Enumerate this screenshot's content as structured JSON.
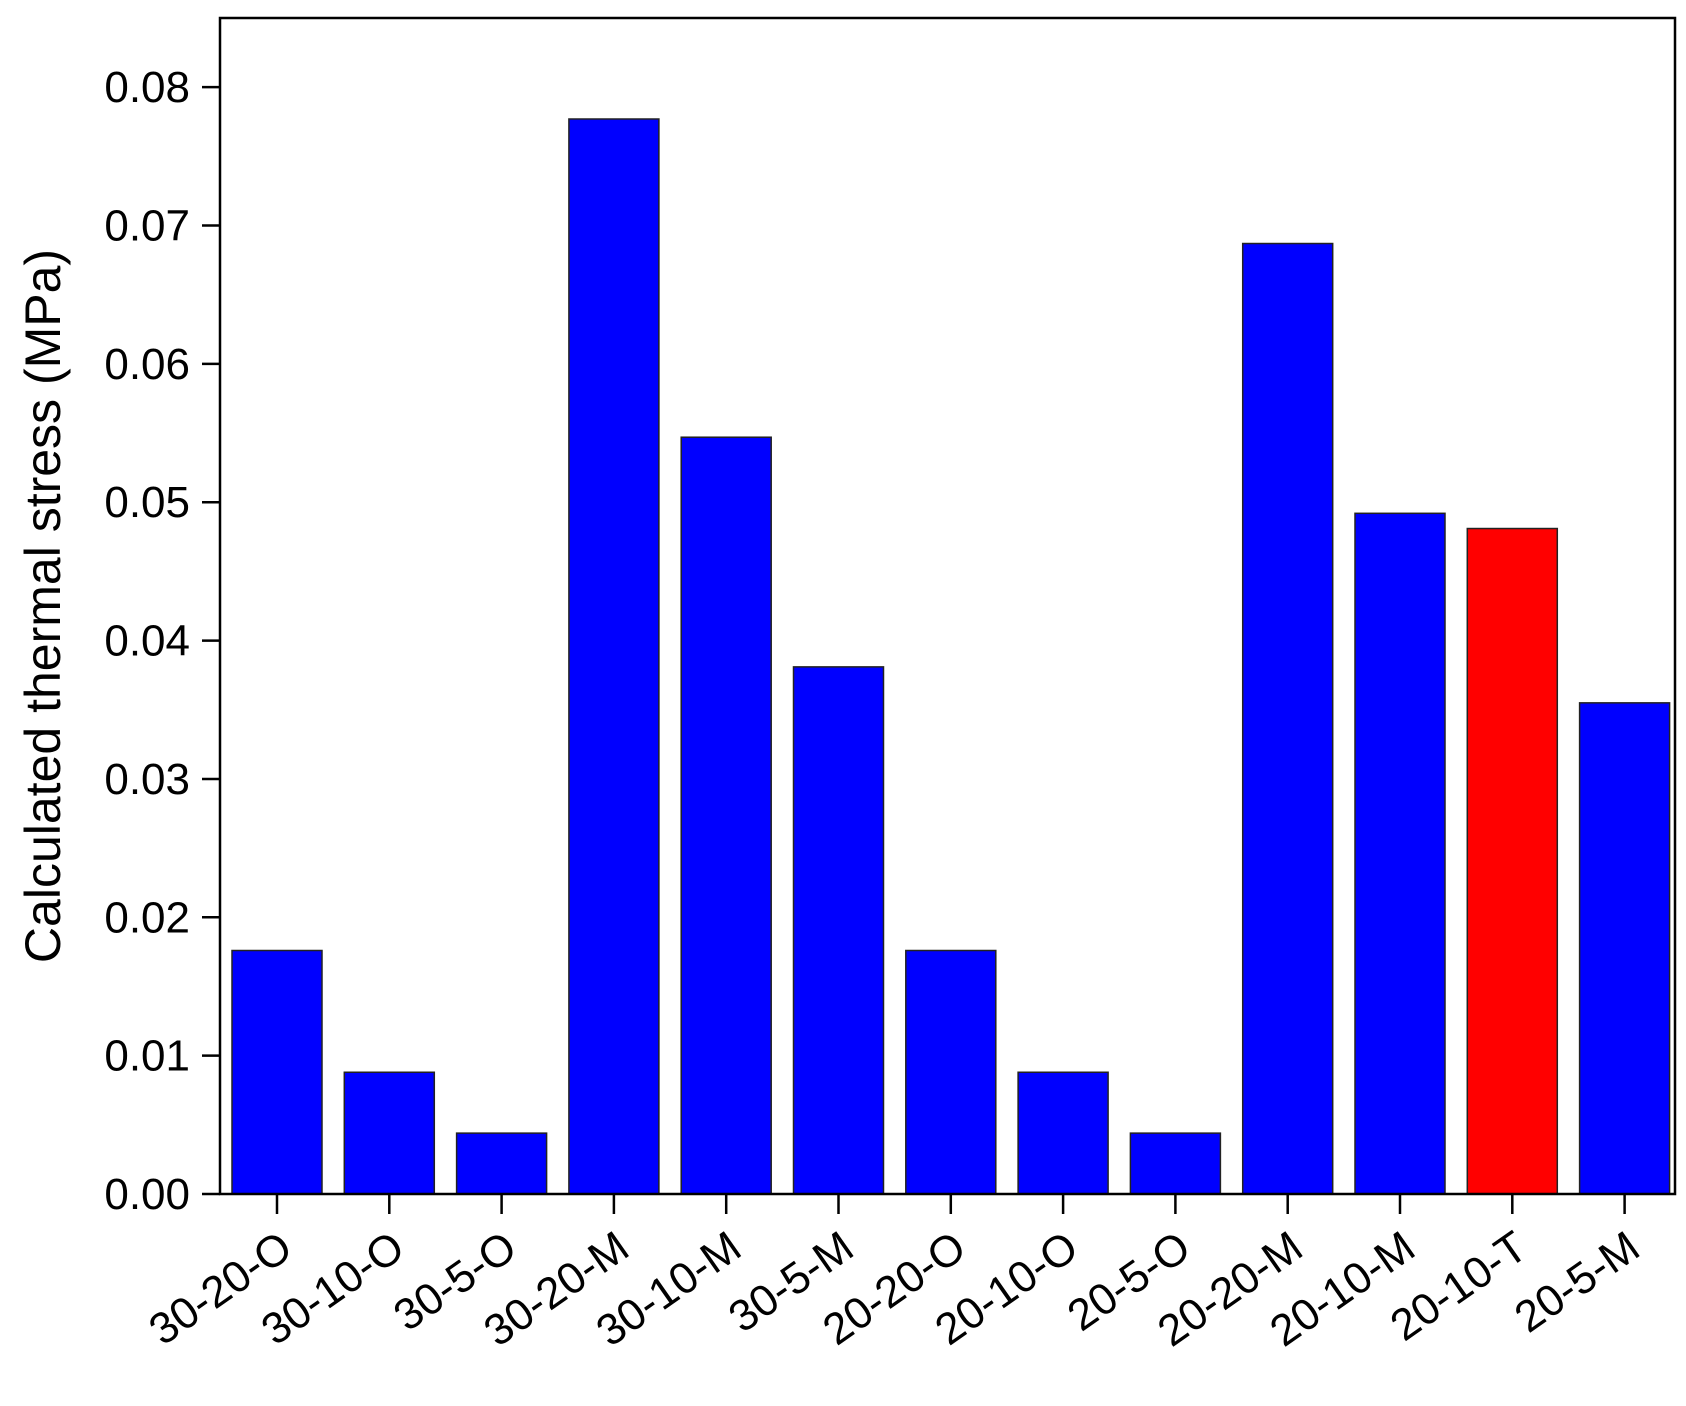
{
  "chart_data": {
    "type": "bar",
    "title": "",
    "xlabel": "",
    "ylabel": "Calculated thermal stress (MPa)",
    "ylim": [
      0,
      0.085
    ],
    "yticks": [
      "0.00",
      "0.01",
      "0.02",
      "0.03",
      "0.04",
      "0.05",
      "0.06",
      "0.07",
      "0.08"
    ],
    "grid": false,
    "categories": [
      "30-20-O",
      "30-10-O",
      "30-5-O",
      "30-20-M",
      "30-10-M",
      "30-5-M",
      "20-20-O",
      "20-10-O",
      "20-5-O",
      "20-20-M",
      "20-10-M",
      "20-10-T",
      "20-5-M"
    ],
    "values": [
      0.0176,
      0.0088,
      0.0044,
      0.0777,
      0.0547,
      0.0381,
      0.0176,
      0.0088,
      0.0044,
      0.0687,
      0.0492,
      0.0481,
      0.0355
    ],
    "colors": [
      "#0000ff",
      "#0000ff",
      "#0000ff",
      "#0000ff",
      "#0000ff",
      "#0000ff",
      "#0000ff",
      "#0000ff",
      "#0000ff",
      "#0000ff",
      "#0000ff",
      "#ff0000",
      "#0000ff"
    ]
  }
}
